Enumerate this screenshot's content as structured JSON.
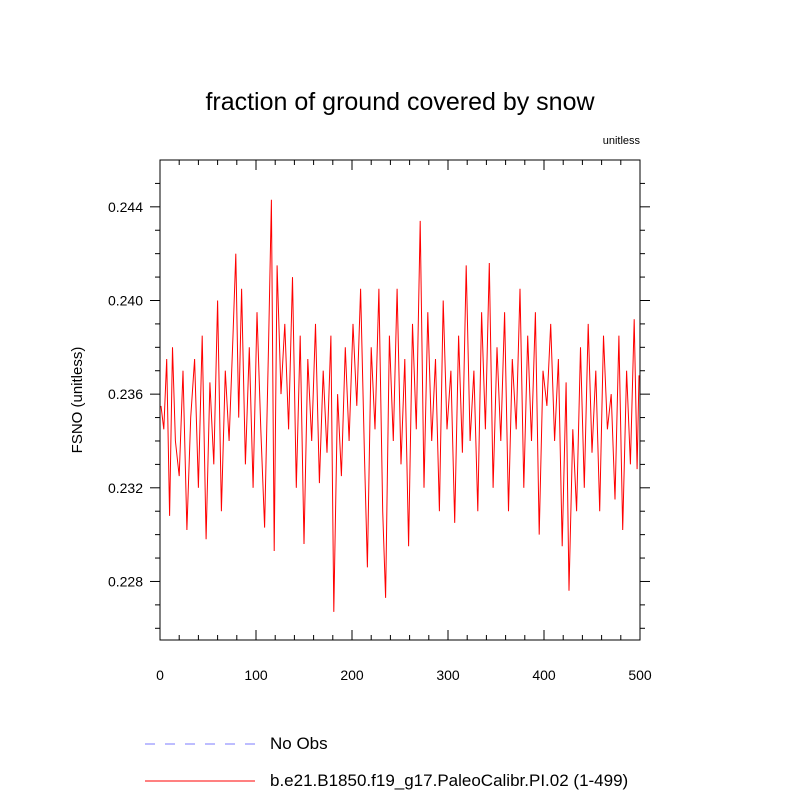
{
  "chart_data": {
    "type": "line",
    "title": "fraction of ground covered by snow",
    "units_label": "unitless",
    "xlabel": "",
    "ylabel": "FSNO  (unitless)",
    "xlim": [
      0,
      500
    ],
    "ylim": [
      0.2255,
      0.246
    ],
    "x_ticks": [
      0,
      100,
      200,
      300,
      400,
      500
    ],
    "x_tick_labels": [
      "0",
      "100",
      "200",
      "300",
      "400",
      "500"
    ],
    "y_ticks": [
      0.228,
      0.232,
      0.236,
      0.24,
      0.244
    ],
    "y_tick_labels": [
      "0.228",
      "0.232",
      "0.236",
      "0.240",
      "0.244"
    ],
    "series": [
      {
        "name": "No Obs",
        "color": "#7b7bff",
        "style": "dashed",
        "values": []
      },
      {
        "name": "b.e21.B1850.f19_g17.PaleoCalibr.PI.02 (1-499)",
        "color": "#ff0000",
        "style": "solid",
        "x": [
          1,
          4,
          7,
          10,
          13,
          16,
          20,
          24,
          28,
          32,
          36,
          40,
          44,
          48,
          52,
          56,
          60,
          64,
          68,
          72,
          76,
          79,
          82,
          85,
          89,
          93,
          97,
          101,
          105,
          109,
          113,
          116,
          119,
          122,
          126,
          130,
          134,
          138,
          142,
          146,
          150,
          154,
          158,
          162,
          166,
          170,
          174,
          178,
          181,
          185,
          189,
          193,
          197,
          201,
          205,
          209,
          213,
          216,
          220,
          224,
          228,
          232,
          235,
          239,
          243,
          247,
          251,
          255,
          259,
          263,
          267,
          271,
          275,
          279,
          283,
          287,
          291,
          295,
          299,
          303,
          307,
          311,
          315,
          319,
          323,
          327,
          331,
          335,
          339,
          343,
          347,
          351,
          355,
          359,
          363,
          367,
          371,
          375,
          379,
          383,
          387,
          391,
          395,
          399,
          403,
          407,
          411,
          415,
          419,
          423,
          426,
          430,
          434,
          438,
          442,
          446,
          450,
          454,
          458,
          462,
          466,
          470,
          474,
          478,
          482,
          486,
          490,
          494,
          497,
          499
        ],
        "values": [
          0.2355,
          0.2345,
          0.2375,
          0.2308,
          0.238,
          0.234,
          0.2325,
          0.237,
          0.2302,
          0.235,
          0.2375,
          0.232,
          0.2385,
          0.2298,
          0.2365,
          0.233,
          0.24,
          0.231,
          0.237,
          0.234,
          0.2385,
          0.242,
          0.235,
          0.2405,
          0.233,
          0.238,
          0.232,
          0.2395,
          0.2345,
          0.2303,
          0.238,
          0.2443,
          0.2293,
          0.2415,
          0.236,
          0.239,
          0.2345,
          0.241,
          0.232,
          0.2385,
          0.2296,
          0.2375,
          0.234,
          0.239,
          0.2322,
          0.237,
          0.2335,
          0.2385,
          0.2267,
          0.236,
          0.2325,
          0.238,
          0.234,
          0.239,
          0.2355,
          0.2405,
          0.2333,
          0.2286,
          0.238,
          0.2345,
          0.2405,
          0.231,
          0.2273,
          0.2385,
          0.234,
          0.2405,
          0.233,
          0.2375,
          0.2295,
          0.239,
          0.2345,
          0.2434,
          0.232,
          0.2395,
          0.234,
          0.2375,
          0.231,
          0.24,
          0.2345,
          0.237,
          0.2305,
          0.2385,
          0.2335,
          0.2415,
          0.234,
          0.237,
          0.231,
          0.2395,
          0.2345,
          0.2416,
          0.232,
          0.238,
          0.234,
          0.2395,
          0.231,
          0.2375,
          0.2345,
          0.2405,
          0.232,
          0.2385,
          0.234,
          0.2395,
          0.23,
          0.237,
          0.2355,
          0.239,
          0.234,
          0.2375,
          0.2295,
          0.2365,
          0.2276,
          0.2345,
          0.231,
          0.238,
          0.232,
          0.239,
          0.2335,
          0.237,
          0.231,
          0.2385,
          0.2345,
          0.236,
          0.2315,
          0.2385,
          0.2302,
          0.237,
          0.233,
          0.2392,
          0.2328,
          0.2368
        ]
      }
    ],
    "legend": {
      "placement": "bottom-left",
      "entries": [
        "No Obs",
        "b.e21.B1850.f19_g17.PaleoCalibr.PI.02 (1-499)"
      ]
    },
    "grid": false
  }
}
